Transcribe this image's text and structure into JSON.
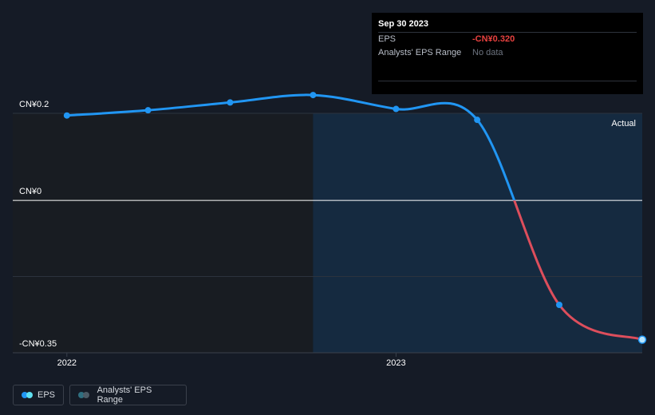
{
  "tooltip": {
    "date": "Sep 30 2023",
    "eps_label": "EPS",
    "eps_value": "-CN¥0.320",
    "range_label": "Analysts' EPS Range",
    "range_value": "No data"
  },
  "legend": {
    "eps_label": "EPS",
    "range_label": "Analysts' EPS Range"
  },
  "colors": {
    "positive": "#2196f3",
    "negative": "#dd4e5c",
    "past_region": "#181c22",
    "actual_region": "#152a40"
  },
  "chart_data": {
    "type": "line",
    "series": [
      {
        "name": "EPS",
        "x": [
          "2021-12-31",
          "2022-03-31",
          "2022-06-30",
          "2022-09-30",
          "2022-12-31",
          "2023-03-31",
          "2023-06-30",
          "2023-09-30"
        ],
        "values": [
          0.195,
          0.207,
          0.225,
          0.242,
          0.21,
          0.185,
          -0.24,
          -0.32
        ]
      }
    ],
    "y_tick_labels": [
      "CN¥0.2",
      "CN¥0",
      "-CN¥0.35"
    ],
    "y_ticks": [
      0.2,
      0,
      -0.35
    ],
    "ylim": [
      -0.35,
      0.2
    ],
    "x_tick_labels": [
      "2022",
      "2023"
    ],
    "x_ticks": [
      "2021-12-31",
      "2022-12-31"
    ],
    "xlim": [
      "2021-11-01",
      "2023-09-30"
    ],
    "actual_label": "Actual",
    "actual_start": "2022-09-30",
    "grid": true
  }
}
